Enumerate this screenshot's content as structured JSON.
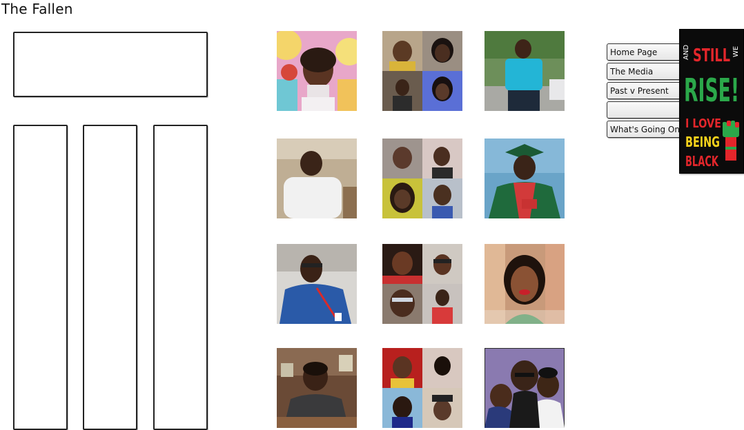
{
  "page": {
    "title": "The Fallen"
  },
  "nav": {
    "items": [
      {
        "label": "Home Page"
      },
      {
        "label": "The Media"
      },
      {
        "label": "Past v Present"
      },
      {
        "label": ""
      },
      {
        "label": "What's Going On"
      }
    ]
  },
  "poster": {
    "line_and": "AND",
    "line_still": "STILL",
    "line_we": "WE",
    "line_rise": "RISE!",
    "line_i_love": "I LOVE",
    "line_being": "BEING",
    "line_black": "BLACK",
    "colors": {
      "red": "#e3262b",
      "green": "#2ba84a",
      "yellow": "#f5d21b",
      "black": "#0b0b0b"
    }
  },
  "gallery": {
    "tiles": [
      {
        "name": "photo-girl-cartoon-background",
        "type": "single"
      },
      {
        "name": "photo-collage-four-people-1",
        "type": "collage"
      },
      {
        "name": "photo-man-blue-shirt-outdoors",
        "type": "single"
      },
      {
        "name": "photo-man-white-shirt-seated",
        "type": "single"
      },
      {
        "name": "photo-collage-four-people-2",
        "type": "collage"
      },
      {
        "name": "photo-graduate-green-gown",
        "type": "single"
      },
      {
        "name": "photo-man-blue-shirt-lanyard",
        "type": "single"
      },
      {
        "name": "photo-collage-four-people-3",
        "type": "collage"
      },
      {
        "name": "photo-woman-smiling-red-lips",
        "type": "single"
      },
      {
        "name": "photo-boy-restaurant",
        "type": "single"
      },
      {
        "name": "photo-collage-four-people-4",
        "type": "collage"
      },
      {
        "name": "photo-family-three-people",
        "type": "single"
      }
    ]
  }
}
